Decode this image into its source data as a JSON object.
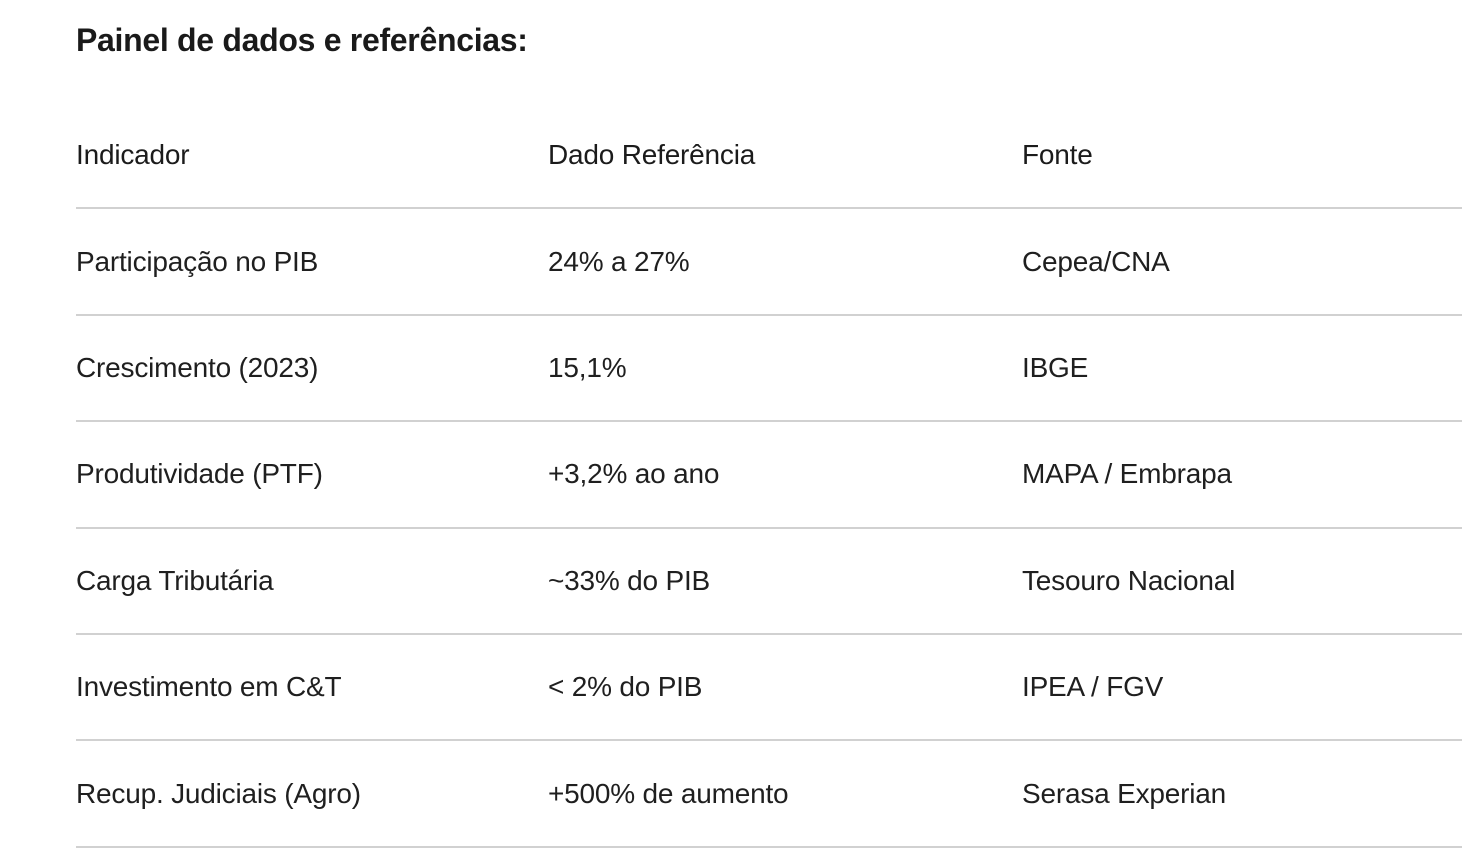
{
  "page": {
    "title": "Painel de dados e referências:"
  },
  "table": {
    "columns": [
      "Indicador",
      "Dado Referência",
      "Fonte"
    ],
    "rows": [
      {
        "indicador": "Participação no PIB",
        "dado": "24% a 27%",
        "fonte": "Cepea/CNA"
      },
      {
        "indicador": "Crescimento (2023)",
        "dado": "15,1%",
        "fonte": "IBGE"
      },
      {
        "indicador": "Produtividade (PTF)",
        "dado": "+3,2% ao ano",
        "fonte": "MAPA / Embrapa"
      },
      {
        "indicador": "Carga Tributária",
        "dado": "~33% do PIB",
        "fonte": "Tesouro Nacional"
      },
      {
        "indicador": "Investimento em C&T",
        "dado": "< 2% do PIB",
        "fonte": "IPEA / FGV"
      },
      {
        "indicador": "Recup. Judiciais (Agro)",
        "dado": "+500% de aumento",
        "fonte": "Serasa Experian"
      }
    ],
    "colors": {
      "text": "#1f1f1f",
      "title_text": "#1a1a1a",
      "divider": "#d1d1d1",
      "background": "#ffffff"
    }
  }
}
